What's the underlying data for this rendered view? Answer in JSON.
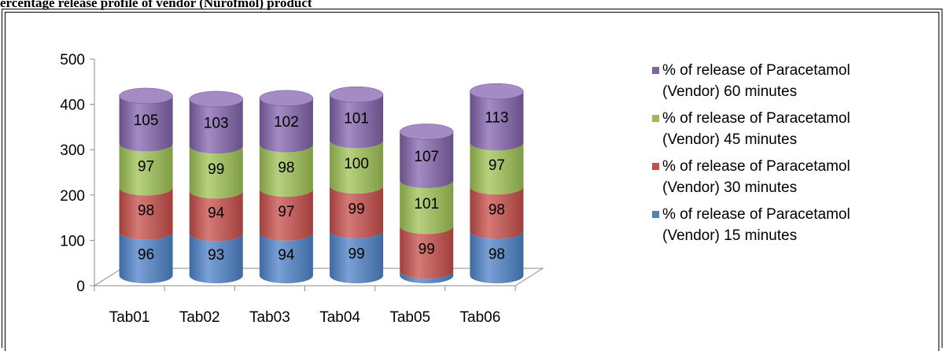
{
  "caption": "ercentage release profile of vendor (Nurofmol) product",
  "chart_data": {
    "type": "bar",
    "stacked": true,
    "three_d": true,
    "categories": [
      "Tab01",
      "Tab02",
      "Tab03",
      "Tab04",
      "Tab05",
      "Tab06"
    ],
    "series": [
      {
        "name": "% of release of Paracetamol (Vendor) 15 minutes",
        "values": [
          96,
          93,
          94,
          99,
          10,
          98
        ],
        "color": "#4f81bd",
        "dark": "#3d6aa1",
        "light": "#7aa0d6"
      },
      {
        "name": "% of release of Paracetamol (Vendor) 30 minutes",
        "values": [
          98,
          94,
          97,
          99,
          99,
          98
        ],
        "color": "#c0504d",
        "dark": "#a03f3c",
        "light": "#d67a77"
      },
      {
        "name": "% of release of Paracetamol (Vendor) 45 minutes",
        "values": [
          97,
          99,
          98,
          100,
          101,
          97
        ],
        "color": "#9bbb59",
        "dark": "#7f9d44",
        "light": "#b7d17f"
      },
      {
        "name": "% of release of Paracetamol (Vendor) 60 minutes",
        "values": [
          105,
          103,
          102,
          101,
          107,
          113
        ],
        "color": "#8064a2",
        "dark": "#674f87",
        "light": "#a58bc4"
      }
    ],
    "legend_lines": [
      [
        "% of release of Paracetamol",
        "(Vendor) 60 minutes"
      ],
      [
        "% of release of Paracetamol",
        "(Vendor) 45 minutes"
      ],
      [
        "% of release of Paracetamol",
        "(Vendor) 30 minutes"
      ],
      [
        "% of release of Paracetamol",
        "(Vendor) 15 minutes"
      ]
    ],
    "yticks": [
      0,
      100,
      200,
      300,
      400,
      500
    ],
    "ylim": [
      0,
      500
    ],
    "legend_position": "right",
    "grid": false
  }
}
